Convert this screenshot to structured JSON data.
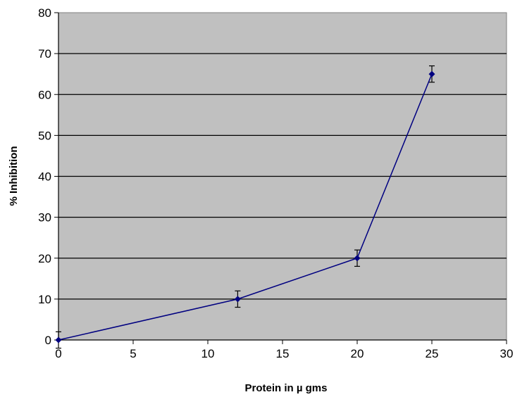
{
  "chart_data": {
    "type": "line",
    "title": "",
    "xlabel": "Protein in µ gms",
    "ylabel": "% Inhibition",
    "xlim": [
      0,
      30
    ],
    "ylim": [
      0,
      80
    ],
    "xticks": [
      0,
      5,
      10,
      15,
      20,
      25,
      30
    ],
    "yticks": [
      0,
      10,
      20,
      30,
      40,
      50,
      60,
      70,
      80
    ],
    "grid": "horizontal",
    "legend": "none",
    "plot_background": "#c0c0c0",
    "series": [
      {
        "color": "#000080",
        "x": [
          0,
          12,
          20,
          25
        ],
        "y": [
          0,
          10,
          20,
          65
        ],
        "error": [
          2,
          2,
          2,
          2
        ]
      }
    ]
  }
}
